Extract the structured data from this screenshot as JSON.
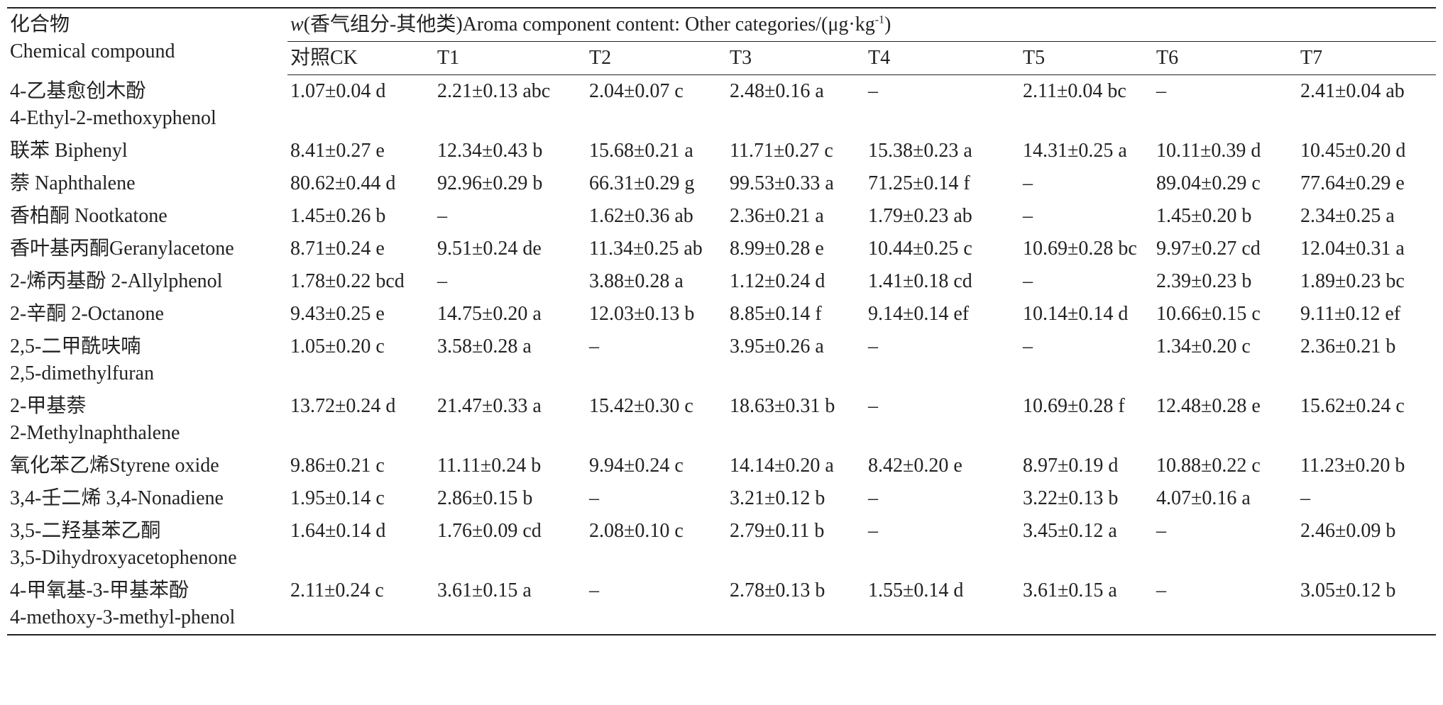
{
  "table": {
    "header": {
      "compound": [
        "化合物",
        "Chemical compound"
      ],
      "group": {
        "var": "w",
        "text": "(香气组分-其他类)Aroma component content: Other categories/(μg·kg",
        "sup": "-1",
        "close": ")"
      },
      "columns": [
        "对照CK",
        "T1",
        "T2",
        "T3",
        "T4",
        "T5",
        "T6",
        "T7"
      ]
    },
    "rows": [
      {
        "compound": [
          "4-乙基愈创木酚",
          "4-Ethyl-2-methoxyphenol"
        ],
        "values": [
          "1.07±0.04 d",
          "2.21±0.13 abc",
          "2.04±0.07 c",
          "2.48±0.16 a",
          "–",
          "2.11±0.04 bc",
          "–",
          "2.41±0.04 ab"
        ]
      },
      {
        "compound": [
          "联苯 Biphenyl"
        ],
        "values": [
          "8.41±0.27 e",
          "12.34±0.43 b",
          "15.68±0.21 a",
          "11.71±0.27 c",
          "15.38±0.23 a",
          "14.31±0.25 a",
          "10.11±0.39 d",
          "10.45±0.20 d"
        ]
      },
      {
        "compound": [
          "萘 Naphthalene"
        ],
        "values": [
          "80.62±0.44 d",
          "92.96±0.29 b",
          "66.31±0.29 g",
          "99.53±0.33 a",
          "71.25±0.14 f",
          "–",
          "89.04±0.29 c",
          "77.64±0.29 e"
        ]
      },
      {
        "compound": [
          "香柏酮 Nootkatone"
        ],
        "values": [
          "1.45±0.26 b",
          "–",
          "1.62±0.36 ab",
          "2.36±0.21 a",
          "1.79±0.23 ab",
          "–",
          "1.45±0.20 b",
          "2.34±0.25 a"
        ]
      },
      {
        "compound": [
          "香叶基丙酮Geranylacetone"
        ],
        "values": [
          "8.71±0.24 e",
          "9.51±0.24 de",
          "11.34±0.25 ab",
          "8.99±0.28 e",
          "10.44±0.25 c",
          "10.69±0.28 bc",
          "9.97±0.27 cd",
          "12.04±0.31 a"
        ]
      },
      {
        "compound": [
          "2-烯丙基酚 2-Allylphenol"
        ],
        "values": [
          "1.78±0.22 bcd",
          "–",
          "3.88±0.28 a",
          "1.12±0.24 d",
          "1.41±0.18 cd",
          "–",
          "2.39±0.23 b",
          "1.89±0.23 bc"
        ]
      },
      {
        "compound": [
          "2-辛酮 2-Octanone"
        ],
        "values": [
          "9.43±0.25 e",
          "14.75±0.20 a",
          "12.03±0.13 b",
          "8.85±0.14 f",
          "9.14±0.14 ef",
          "10.14±0.14 d",
          "10.66±0.15 c",
          "9.11±0.12 ef"
        ]
      },
      {
        "compound": [
          "2,5-二甲酰呋喃",
          "2,5-dimethylfuran"
        ],
        "values": [
          "1.05±0.20 c",
          "3.58±0.28 a",
          "–",
          "3.95±0.26 a",
          "–",
          "–",
          "1.34±0.20 c",
          "2.36±0.21 b"
        ]
      },
      {
        "compound": [
          "2-甲基萘",
          "2-Methylnaphthalene"
        ],
        "values": [
          "13.72±0.24 d",
          "21.47±0.33 a",
          "15.42±0.30 c",
          "18.63±0.31 b",
          "–",
          "10.69±0.28 f",
          "12.48±0.28 e",
          "15.62±0.24 c"
        ]
      },
      {
        "compound": [
          "氧化苯乙烯Styrene oxide"
        ],
        "values": [
          "9.86±0.21 c",
          "11.11±0.24 b",
          "9.94±0.24 c",
          "14.14±0.20 a",
          "8.42±0.20 e",
          "8.97±0.19 d",
          "10.88±0.22 c",
          "11.23±0.20 b"
        ]
      },
      {
        "compound": [
          "3,4-壬二烯 3,4-Nonadiene"
        ],
        "values": [
          "1.95±0.14 c",
          "2.86±0.15 b",
          "–",
          "3.21±0.12 b",
          "–",
          "3.22±0.13 b",
          "4.07±0.16 a",
          "–"
        ]
      },
      {
        "compound": [
          "3,5-二羟基苯乙酮",
          "3,5-Dihydroxyacetophenone"
        ],
        "values": [
          "1.64±0.14 d",
          "1.76±0.09 cd",
          "2.08±0.10 c",
          "2.79±0.11 b",
          "–",
          "3.45±0.12 a",
          "–",
          "2.46±0.09 b"
        ]
      },
      {
        "compound": [
          "4-甲氧基-3-甲基苯酚",
          "4-methoxy-3-methyl-phenol"
        ],
        "values": [
          "2.11±0.24 c",
          "3.61±0.15 a",
          "–",
          "2.78±0.13 b",
          "1.55±0.14 d",
          "3.61±0.15 a",
          "–",
          "3.05±0.12 b"
        ]
      }
    ]
  }
}
